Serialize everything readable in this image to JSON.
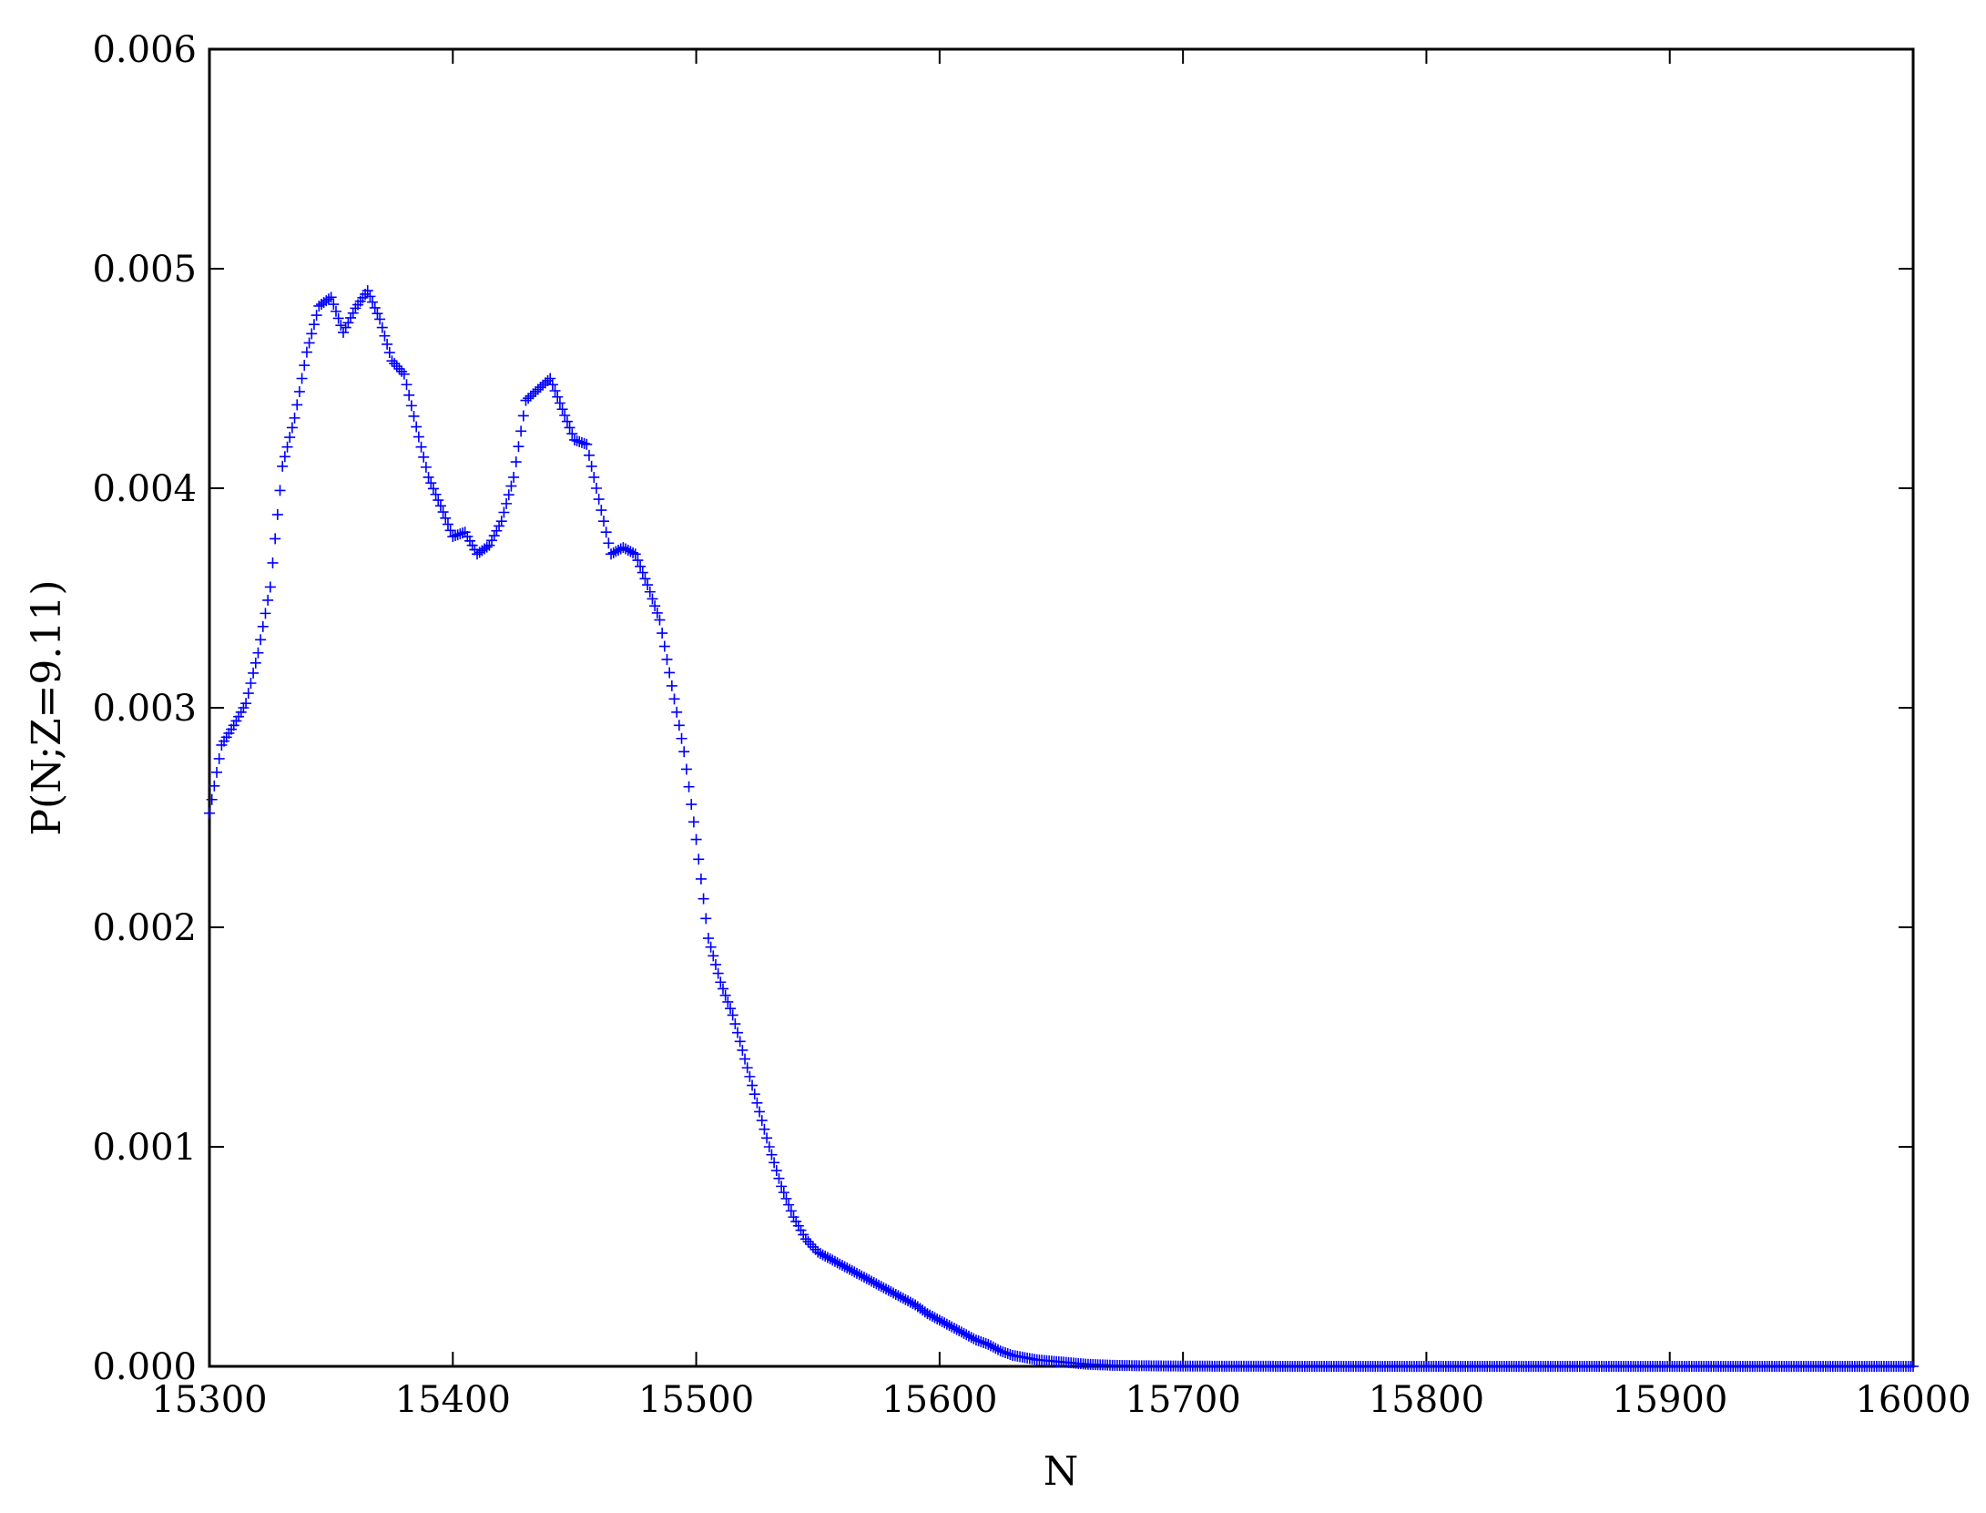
{
  "chart_data": {
    "type": "scatter",
    "title": "",
    "xlabel": "N",
    "ylabel": "P(N;Z=9.11)",
    "xlim": [
      15300,
      16000
    ],
    "ylim": [
      0,
      0.006
    ],
    "xticks": [
      "15300",
      "15400",
      "15500",
      "15600",
      "15700",
      "15800",
      "15900",
      "16000"
    ],
    "yticks": [
      "0.000",
      "0.001",
      "0.002",
      "0.003",
      "0.004",
      "0.005",
      "0.006"
    ],
    "grid": false,
    "marker": "plus",
    "color": "#0000ff",
    "series": [
      {
        "x": [
          15300,
          15305,
          15310,
          15315,
          15320,
          15325,
          15330,
          15335,
          15340,
          15345,
          15350,
          15355,
          15360,
          15365,
          15370,
          15375,
          15380,
          15385,
          15390,
          15395,
          15400,
          15405,
          15410,
          15415,
          15420,
          15425,
          15430,
          15435,
          15440,
          15445,
          15450,
          15455,
          15460,
          15465,
          15470,
          15475,
          15480,
          15485,
          15490,
          15495,
          15500,
          15505,
          15510,
          15515,
          15520,
          15525,
          15530,
          15535,
          15540,
          15545,
          15550,
          15555,
          15560,
          15565,
          15570,
          15575,
          15580,
          15585,
          15590,
          15595,
          15600,
          15605,
          15610,
          15615,
          15620,
          15625,
          15630,
          15635,
          15640,
          15650,
          15660,
          15670,
          15680,
          15700,
          15750,
          15800,
          15900,
          16000
        ],
        "y": [
          0.00252,
          0.00283,
          0.00292,
          0.00302,
          0.00325,
          0.00355,
          0.0041,
          0.00432,
          0.00462,
          0.00483,
          0.00487,
          0.00471,
          0.00482,
          0.0049,
          0.00477,
          0.00458,
          0.00452,
          0.00428,
          0.00405,
          0.00392,
          0.00378,
          0.0038,
          0.0037,
          0.00374,
          0.00385,
          0.00405,
          0.0044,
          0.00445,
          0.0045,
          0.00436,
          0.00422,
          0.0042,
          0.00395,
          0.0037,
          0.00373,
          0.0037,
          0.00356,
          0.0034,
          0.0031,
          0.0028,
          0.0024,
          0.00195,
          0.00175,
          0.0016,
          0.0014,
          0.0012,
          0.001,
          0.00082,
          0.00068,
          0.00058,
          0.00052,
          0.00049,
          0.00046,
          0.00043,
          0.0004,
          0.00037,
          0.00034,
          0.00031,
          0.00028,
          0.00024,
          0.00021,
          0.00018,
          0.00015,
          0.00012,
          0.0001,
          7e-05,
          5e-05,
          4e-05,
          3e-05,
          2e-05,
          1e-05,
          5e-06,
          3e-06,
          1e-06,
          0.0,
          0.0,
          0.0,
          0.0
        ]
      }
    ]
  }
}
